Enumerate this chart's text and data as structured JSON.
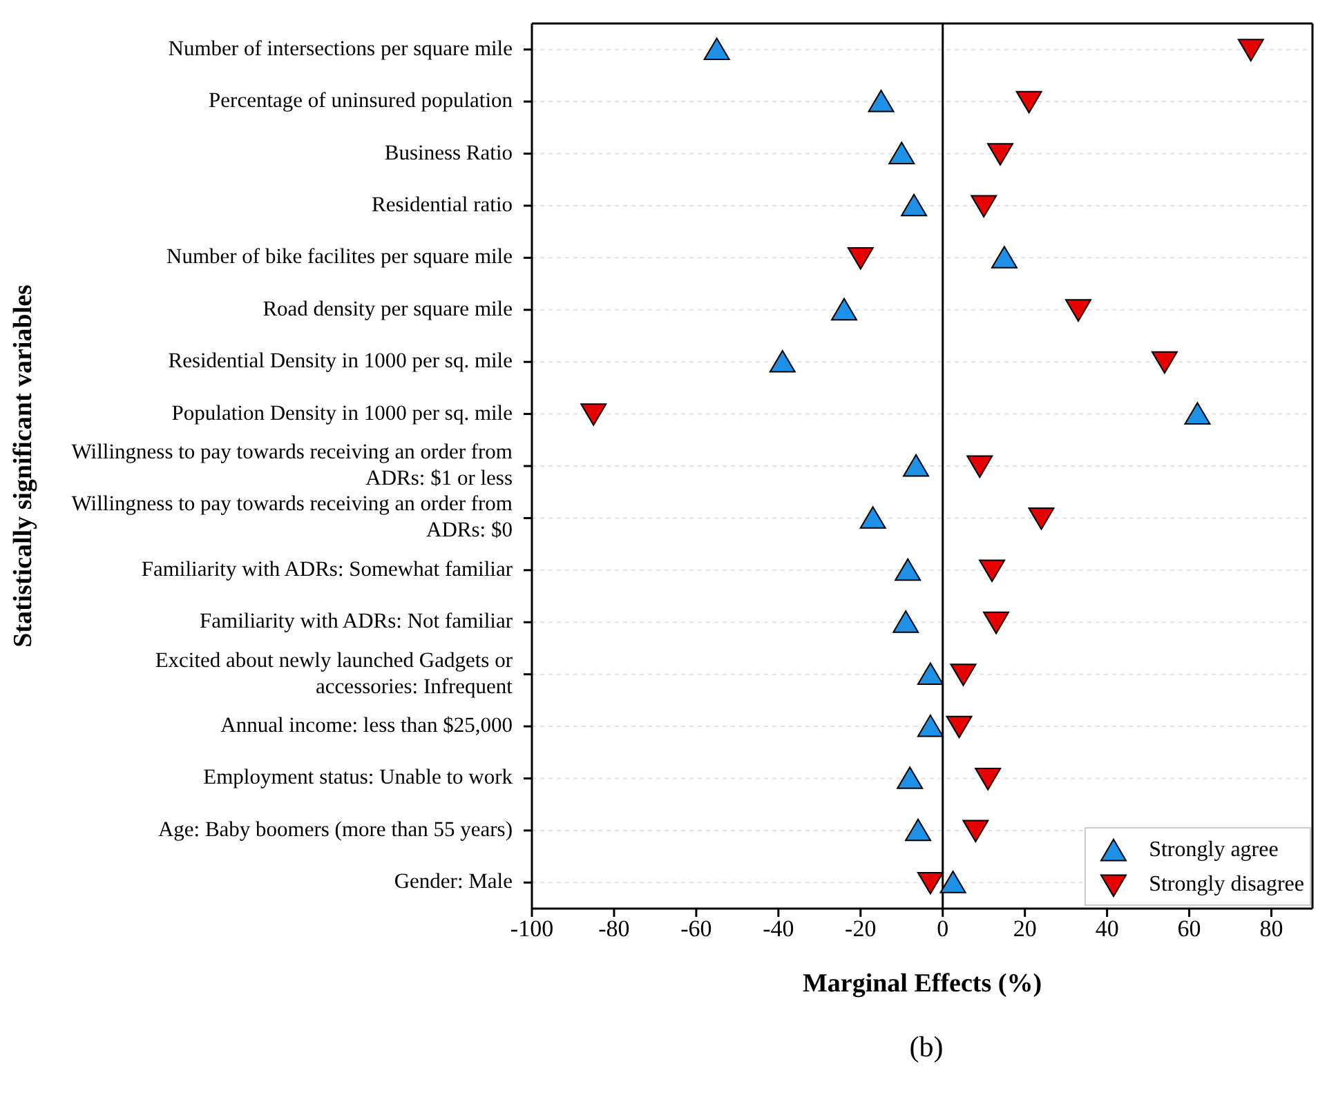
{
  "chart_data": {
    "type": "scatter",
    "orientation": "horizontal",
    "xlabel": "Marginal Effects (%)",
    "ylabel": "Statistically significant variables",
    "categories": [
      "Number of intersections per square mile",
      "Percentage of uninsured population",
      "Business Ratio",
      "Residential ratio",
      "Number of bike facilites per square mile",
      "Road density per square mile",
      "Residential Density in 1000 per sq. mile",
      "Population Density in 1000 per sq. mile",
      "Willingness to pay towards receiving an order from ADRs: $1 or less",
      "Willingness to pay towards receiving an order from ADRs: $0",
      "Familiarity with ADRs: Somewhat familiar",
      "Familiarity with ADRs: Not familiar",
      "Excited about newly launched Gadgets or accessories: Infrequent",
      "Annual income: less than $25,000",
      "Employment status: Unable to work",
      "Age: Baby boomers (more than 55 years)",
      "Gender: Male"
    ],
    "series": [
      {
        "name": "Strongly agree",
        "color": "#1e90e6",
        "marker": "triangle",
        "values": [
          -55,
          -15,
          -10,
          -7,
          15,
          -24,
          -39,
          62,
          -6.5,
          -17,
          -8.5,
          -9,
          -3,
          -3,
          -8,
          -6,
          2.5
        ]
      },
      {
        "name": "Strongly disagree",
        "color": "#e60000",
        "marker": "triangle-down",
        "values": [
          75,
          21,
          14,
          10,
          -20,
          33,
          54,
          -85,
          9,
          24,
          12,
          13,
          5,
          4,
          11,
          8,
          -3
        ]
      }
    ],
    "xlim": [
      -100,
      90
    ],
    "xticks": [
      -100,
      -80,
      -60,
      -40,
      -20,
      0,
      20,
      40,
      60,
      80
    ],
    "grid": "y",
    "legend": "bottom right",
    "ref_lines": [
      {
        "axis": "x",
        "value": 0,
        "color": "#000000"
      }
    ],
    "annotations": [
      "(b)"
    ]
  }
}
